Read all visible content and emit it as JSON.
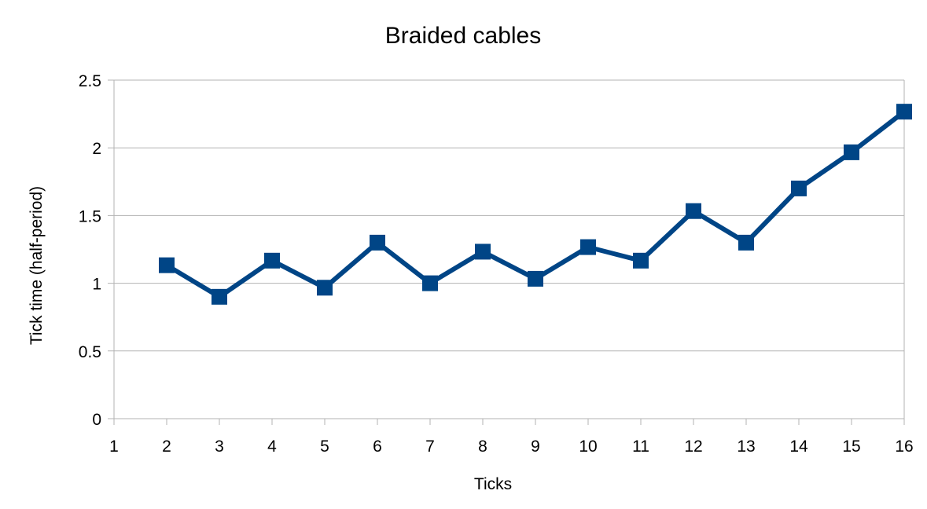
{
  "chart_data": {
    "type": "line",
    "title": "Braided cables",
    "xlabel": "Ticks",
    "ylabel": "Tick time (half-period)",
    "x": [
      2,
      3,
      4,
      5,
      6,
      7,
      8,
      9,
      10,
      11,
      12,
      13,
      14,
      15,
      16
    ],
    "series": [
      {
        "values": [
          1.133,
          0.9,
          1.167,
          0.967,
          1.3,
          1.0,
          1.233,
          1.033,
          1.267,
          1.167,
          1.533,
          1.3,
          1.7,
          1.967,
          2.267
        ],
        "color": "#004586",
        "marker": "square"
      }
    ],
    "xlim": [
      1,
      16
    ],
    "ylim": [
      0,
      2.5
    ],
    "xticks": [
      1,
      2,
      3,
      4,
      5,
      6,
      7,
      8,
      9,
      10,
      11,
      12,
      13,
      14,
      15,
      16
    ],
    "yticks": [
      "0",
      "0.5",
      "1",
      "1.5",
      "2",
      "2.5"
    ],
    "grid": "horizontal",
    "legend": "none"
  }
}
